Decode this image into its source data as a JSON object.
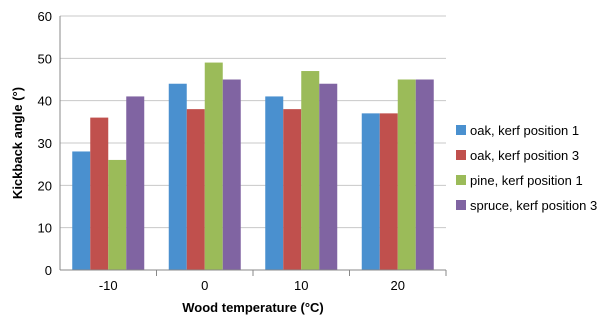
{
  "chart_data": {
    "type": "bar",
    "categories": [
      "-10",
      "0",
      "10",
      "20"
    ],
    "series": [
      {
        "name": "oak, kerf position 1",
        "values": [
          28,
          44,
          41,
          37
        ],
        "color": "#4A90CF"
      },
      {
        "name": "oak, kerf position  3",
        "values": [
          36,
          38,
          38,
          37
        ],
        "color": "#C0504D"
      },
      {
        "name": "pine, kerf position 1",
        "values": [
          26,
          49,
          47,
          45
        ],
        "color": "#9BBB59"
      },
      {
        "name": "spruce, kerf position 3",
        "values": [
          41,
          45,
          44,
          45
        ],
        "color": "#8064A2"
      }
    ],
    "xlabel": "Wood temperature (°C)",
    "ylabel": "Kickback angle (°)",
    "ylim": [
      0,
      60
    ],
    "yticks": [
      0,
      10,
      20,
      30,
      40,
      50,
      60
    ],
    "grid": true,
    "legend_position": "right"
  }
}
